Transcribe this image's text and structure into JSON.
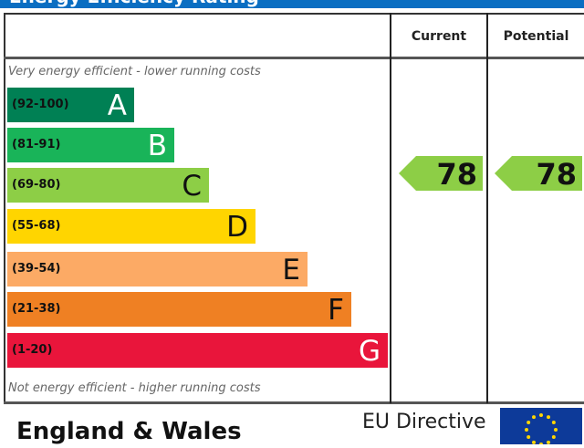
{
  "header": {
    "title": "Energy Efficiency Rating"
  },
  "columns": {
    "current": "Current",
    "potential": "Potential"
  },
  "chart_data": {
    "type": "bar",
    "top_note": "Very energy efficient - lower running costs",
    "bottom_note": "Not energy efficient - higher running costs",
    "bands": [
      {
        "range": "(92-100)",
        "letter": "A",
        "color": "#008054"
      },
      {
        "range": "(81-91)",
        "letter": "B",
        "color": "#19b459"
      },
      {
        "range": "(69-80)",
        "letter": "C",
        "color": "#8dce46"
      },
      {
        "range": "(55-68)",
        "letter": "D",
        "color": "#ffd500"
      },
      {
        "range": "(39-54)",
        "letter": "E",
        "color": "#fcaa65"
      },
      {
        "range": "(21-38)",
        "letter": "F",
        "color": "#ef8023"
      },
      {
        "range": "(1-20)",
        "letter": "G",
        "color": "#e9153b"
      }
    ],
    "current": {
      "value": 78,
      "band": "C",
      "color": "#8dce46"
    },
    "potential": {
      "value": 78,
      "band": "C",
      "color": "#8dce46"
    }
  },
  "footer": {
    "country": "England & Wales",
    "directive": "EU Directive",
    "flag": "eu-flag-icon"
  }
}
